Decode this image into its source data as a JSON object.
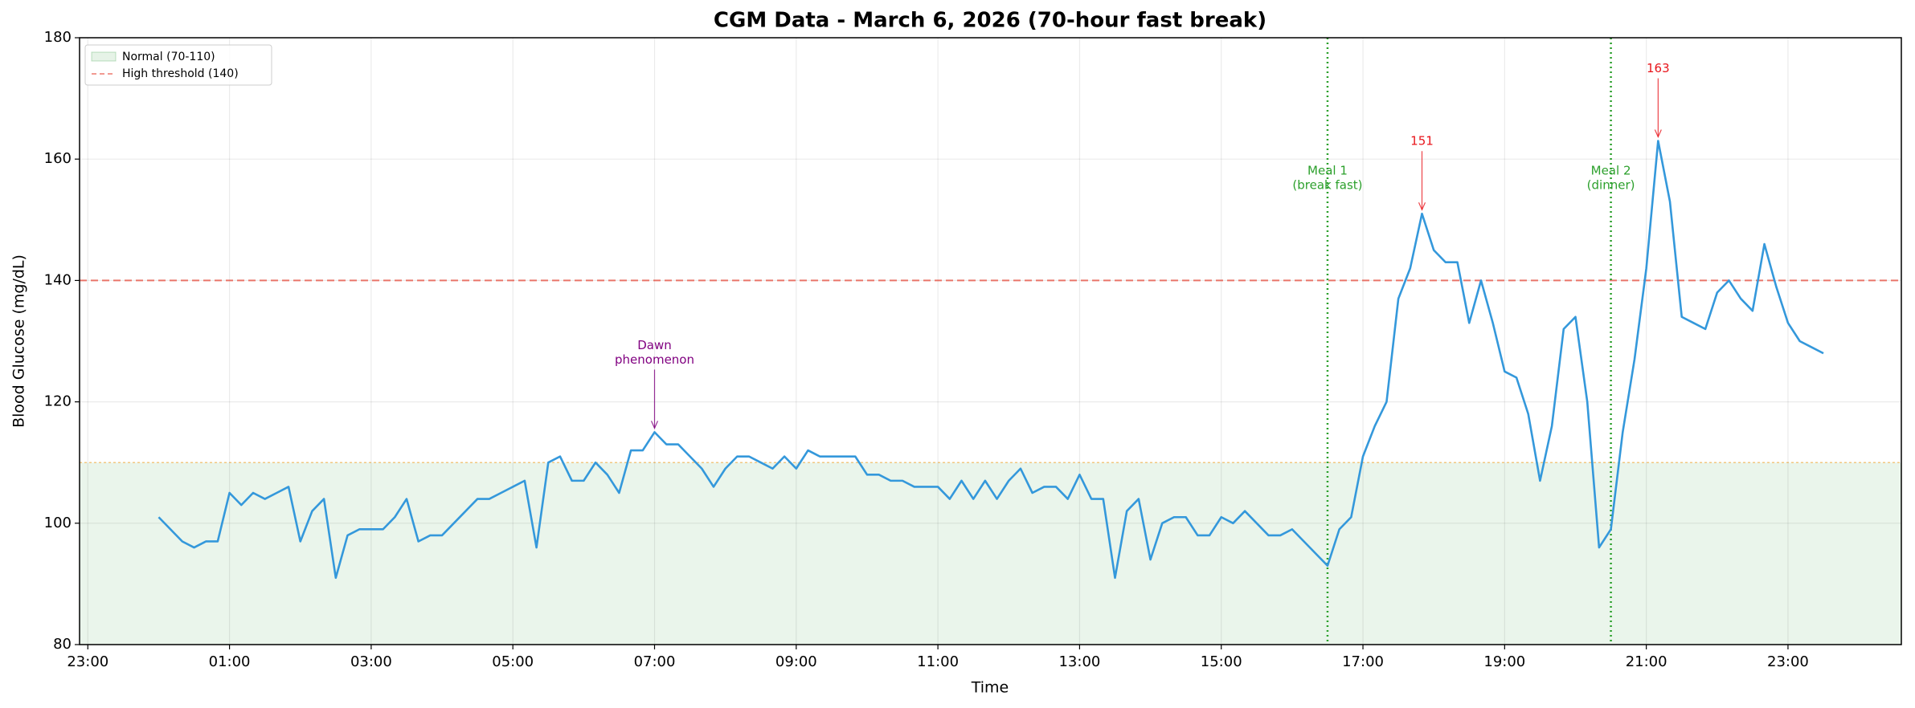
{
  "chart_data": {
    "type": "line",
    "title": "CGM Data - March 6, 2026 (70-hour fast break)",
    "x_label": "Time",
    "y_label": "Blood Glucose (mg/dL)",
    "x": [
      0,
      10,
      20,
      30,
      40,
      50,
      60,
      70,
      80,
      90,
      100,
      110,
      120,
      130,
      140,
      150,
      160,
      170,
      180,
      190,
      200,
      210,
      220,
      230,
      240,
      250,
      260,
      270,
      280,
      290,
      300,
      310,
      320,
      330,
      340,
      350,
      360,
      370,
      380,
      390,
      400,
      410,
      420,
      430,
      440,
      450,
      460,
      470,
      480,
      490,
      500,
      510,
      520,
      530,
      540,
      550,
      560,
      570,
      580,
      590,
      600,
      610,
      620,
      630,
      640,
      650,
      660,
      670,
      680,
      690,
      700,
      710,
      720,
      730,
      740,
      750,
      760,
      770,
      780,
      790,
      800,
      810,
      820,
      830,
      840,
      850,
      860,
      870,
      880,
      890,
      900,
      910,
      920,
      930,
      940,
      950,
      960,
      970,
      980,
      990,
      1000,
      1010,
      1020,
      1030,
      1040,
      1050,
      1060,
      1070,
      1080,
      1090,
      1100,
      1110,
      1120,
      1130,
      1140,
      1150,
      1160,
      1170,
      1180,
      1190,
      1200,
      1210,
      1220,
      1230,
      1240,
      1250,
      1260,
      1270,
      1280,
      1290,
      1300,
      1310,
      1320,
      1330,
      1340,
      1350,
      1360,
      1370,
      1380,
      1390,
      1400,
      1410
    ],
    "values": [
      101,
      99,
      97,
      96,
      97,
      97,
      105,
      103,
      105,
      104,
      105,
      106,
      97,
      102,
      104,
      91,
      98,
      99,
      99,
      99,
      101,
      104,
      97,
      98,
      98,
      100,
      102,
      104,
      104,
      105,
      106,
      107,
      96,
      110,
      111,
      107,
      107,
      110,
      108,
      105,
      112,
      112,
      115,
      113,
      113,
      111,
      109,
      106,
      109,
      111,
      111,
      110,
      109,
      111,
      109,
      112,
      111,
      111,
      111,
      111,
      108,
      108,
      107,
      107,
      106,
      106,
      106,
      104,
      107,
      104,
      107,
      104,
      107,
      109,
      105,
      106,
      106,
      104,
      108,
      104,
      104,
      91,
      102,
      104,
      94,
      100,
      101,
      101,
      98,
      98,
      101,
      100,
      102,
      100,
      98,
      98,
      99,
      97,
      95,
      93,
      99,
      101,
      111,
      116,
      120,
      137,
      142,
      151,
      145,
      143,
      143,
      133,
      140,
      133,
      125,
      124,
      118,
      107,
      116,
      132,
      134,
      120,
      96,
      99,
      115,
      127,
      142,
      163,
      153,
      134,
      133,
      132,
      138,
      140,
      137,
      135,
      146,
      139,
      133,
      130,
      129,
      128
    ],
    "color": "#3498db",
    "xlim": [
      -67,
      1476
    ],
    "xticks": [
      {
        "value": -60,
        "label": "23:00"
      },
      {
        "value": 60,
        "label": "01:00"
      },
      {
        "value": 180,
        "label": "03:00"
      },
      {
        "value": 300,
        "label": "05:00"
      },
      {
        "value": 420,
        "label": "07:00"
      },
      {
        "value": 540,
        "label": "09:00"
      },
      {
        "value": 660,
        "label": "11:00"
      },
      {
        "value": 780,
        "label": "13:00"
      },
      {
        "value": 900,
        "label": "15:00"
      },
      {
        "value": 1020,
        "label": "17:00"
      },
      {
        "value": 1140,
        "label": "19:00"
      },
      {
        "value": 1260,
        "label": "21:00"
      },
      {
        "value": 1380,
        "label": "23:00"
      }
    ],
    "ylim": [
      80,
      180
    ],
    "yticks": [
      80,
      100,
      120,
      140,
      160,
      180
    ],
    "grid": true,
    "legend": "upper left",
    "normal_range": {
      "label": "Normal (70-110)",
      "low": 70,
      "high": 110,
      "color": "#2e9d3a",
      "edge_color": "#f0b050"
    },
    "threshold": {
      "label": "High threshold (140)",
      "value": 140,
      "color": "#e74c3c"
    },
    "events": [
      {
        "lines": [
          "Meal 1",
          "(break fast)"
        ],
        "x": 990,
        "color": "#2ca02c"
      },
      {
        "lines": [
          "Meal 2",
          "(dinner)"
        ],
        "x": 1230,
        "color": "#2ca02c"
      }
    ],
    "annotations": [
      {
        "lines": [
          "Dawn",
          "phenomenon"
        ],
        "x": 420,
        "y": 115,
        "color": "#800080"
      },
      {
        "lines": [
          "151"
        ],
        "x": 1070,
        "y": 151,
        "color": "#e8151b"
      },
      {
        "lines": [
          "163"
        ],
        "x": 1270,
        "y": 163,
        "color": "#e8151b"
      }
    ]
  }
}
